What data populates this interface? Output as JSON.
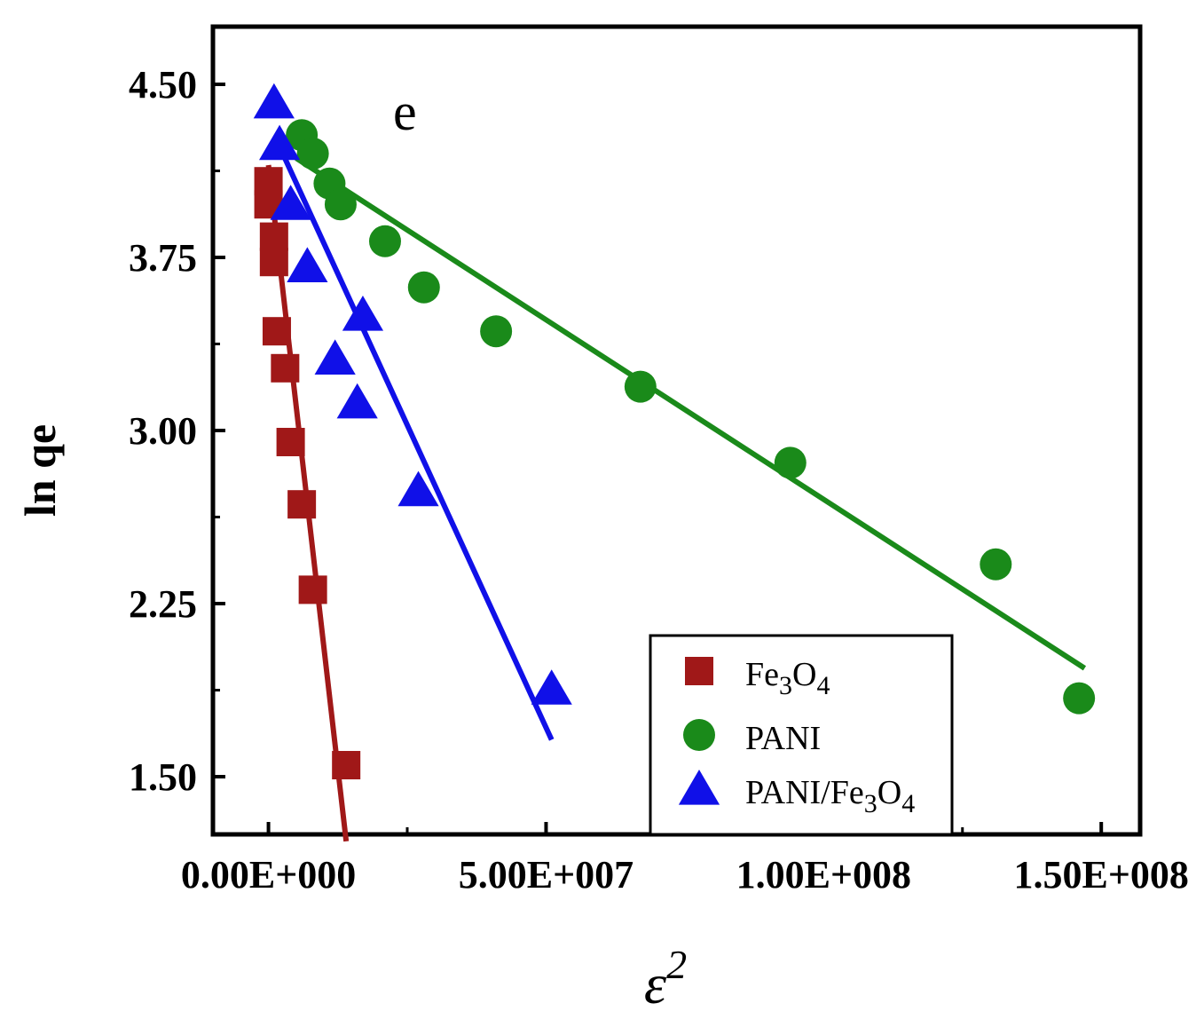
{
  "chart_data": {
    "type": "scatter",
    "title": "",
    "panel_label": "e",
    "xlabel": "ε",
    "xlabel_superscript": "2",
    "ylabel": "ln qe",
    "xlim": [
      -10000000,
      157000000
    ],
    "ylim": [
      1.25,
      4.75
    ],
    "xticks": [
      0,
      50000000,
      100000000,
      150000000
    ],
    "xtick_labels": [
      "0.00E+000",
      "5.00E+007",
      "1.00E+008",
      "1.50E+008"
    ],
    "yticks": [
      1.5,
      2.25,
      3.0,
      3.75,
      4.5
    ],
    "ytick_labels": [
      "1.50",
      "2.25",
      "3.00",
      "3.75",
      "4.50"
    ],
    "grid": false,
    "legend_position": "bottom-right",
    "series": [
      {
        "name": "Fe3O4",
        "legend_main": "Fe",
        "legend_parts": [
          [
            "Fe",
            false
          ],
          [
            "3",
            true
          ],
          [
            "O",
            false
          ],
          [
            "4",
            true
          ]
        ],
        "marker": "square",
        "color": "#a01818",
        "points": [
          [
            0,
            4.08
          ],
          [
            0,
            3.98
          ],
          [
            1000000,
            3.84
          ],
          [
            1000000,
            3.73
          ],
          [
            1500000,
            3.43
          ],
          [
            3000000,
            3.27
          ],
          [
            4000000,
            2.95
          ],
          [
            6000000,
            2.68
          ],
          [
            8000000,
            2.31
          ],
          [
            14000000,
            1.55
          ]
        ],
        "fit": [
          [
            0,
            4.15
          ],
          [
            14000000,
            1.22
          ]
        ]
      },
      {
        "name": "PANI",
        "legend_parts": [
          [
            "PANI",
            false
          ]
        ],
        "marker": "circle",
        "color": "#1a8a1a",
        "points": [
          [
            6000000,
            4.28
          ],
          [
            8000000,
            4.2
          ],
          [
            11000000,
            4.07
          ],
          [
            13000000,
            3.98
          ],
          [
            21000000,
            3.82
          ],
          [
            28000000,
            3.62
          ],
          [
            41000000,
            3.43
          ],
          [
            67000000,
            3.19
          ],
          [
            94000000,
            2.86
          ],
          [
            131000000,
            2.42
          ],
          [
            146000000,
            1.84
          ]
        ],
        "fit": [
          [
            5000000,
            4.18
          ],
          [
            147000000,
            1.97
          ]
        ]
      },
      {
        "name": "PANI/Fe3O4",
        "legend_parts": [
          [
            "PANI/Fe",
            false
          ],
          [
            "3",
            true
          ],
          [
            "O",
            false
          ],
          [
            "4",
            true
          ]
        ],
        "marker": "triangle",
        "color": "#1010e8",
        "points": [
          [
            1000000,
            4.42
          ],
          [
            2000000,
            4.24
          ],
          [
            4000000,
            3.98
          ],
          [
            7000000,
            3.71
          ],
          [
            17000000,
            3.5
          ],
          [
            12000000,
            3.31
          ],
          [
            16000000,
            3.12
          ],
          [
            27000000,
            2.74
          ],
          [
            51000000,
            1.88
          ]
        ],
        "fit": [
          [
            2000000,
            4.23
          ],
          [
            51000000,
            1.66
          ]
        ]
      }
    ]
  }
}
